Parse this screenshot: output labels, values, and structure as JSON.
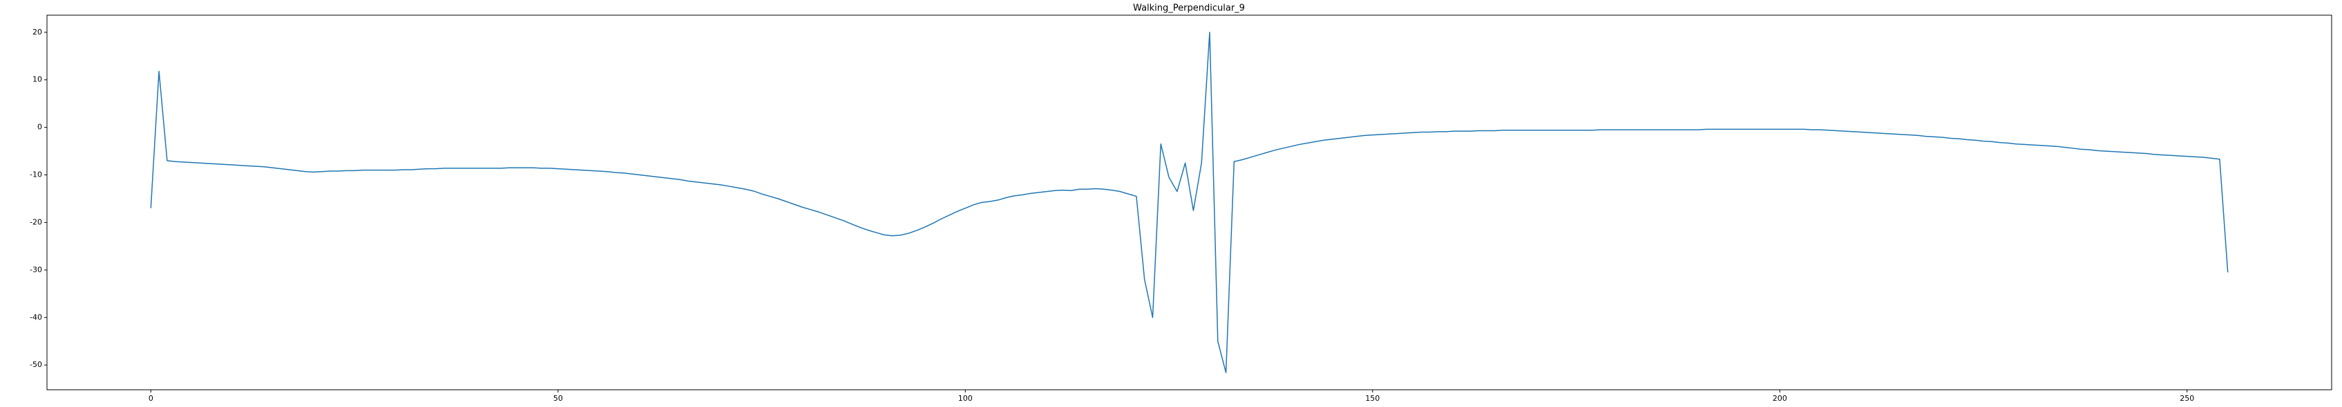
{
  "chart_data": {
    "type": "line",
    "title": "Walking_Perpendicular_9",
    "color": "#1f77b4",
    "x": [
      0,
      1,
      2,
      3,
      4,
      5,
      6,
      7,
      8,
      9,
      10,
      11,
      12,
      13,
      14,
      15,
      16,
      17,
      18,
      19,
      20,
      21,
      22,
      23,
      24,
      25,
      26,
      27,
      28,
      29,
      30,
      31,
      32,
      33,
      34,
      35,
      36,
      37,
      38,
      39,
      40,
      41,
      42,
      43,
      44,
      45,
      46,
      47,
      48,
      49,
      50,
      51,
      52,
      53,
      54,
      55,
      56,
      57,
      58,
      59,
      60,
      61,
      62,
      63,
      64,
      65,
      66,
      67,
      68,
      69,
      70,
      71,
      72,
      73,
      74,
      75,
      76,
      77,
      78,
      79,
      80,
      81,
      82,
      83,
      84,
      85,
      86,
      87,
      88,
      89,
      90,
      91,
      92,
      93,
      94,
      95,
      96,
      97,
      98,
      99,
      100,
      101,
      102,
      103,
      104,
      105,
      106,
      107,
      108,
      109,
      110,
      111,
      112,
      113,
      114,
      115,
      116,
      117,
      118,
      119,
      120,
      121,
      122,
      123,
      124,
      125,
      126,
      127,
      128,
      129,
      130,
      131,
      132,
      133,
      134,
      135,
      136,
      137,
      138,
      139,
      140,
      141,
      142,
      143,
      144,
      145,
      146,
      147,
      148,
      149,
      150,
      151,
      152,
      153,
      154,
      155,
      156,
      157,
      158,
      159,
      160,
      161,
      162,
      163,
      164,
      165,
      166,
      167,
      168,
      169,
      170,
      171,
      172,
      173,
      174,
      175,
      176,
      177,
      178,
      179,
      180,
      181,
      182,
      183,
      184,
      185,
      186,
      187,
      188,
      189,
      190,
      191,
      192,
      193,
      194,
      195,
      196,
      197,
      198,
      199,
      200,
      201,
      202,
      203,
      204,
      205,
      206,
      207,
      208,
      209,
      210,
      211,
      212,
      213,
      214,
      215,
      216,
      217,
      218,
      219,
      220,
      221,
      222,
      223,
      224,
      225,
      226,
      227,
      228,
      229,
      230,
      231,
      232,
      233,
      234,
      235,
      236,
      237,
      238,
      239,
      240,
      241,
      242,
      243,
      244,
      245,
      246,
      247,
      248,
      249,
      250,
      251,
      252,
      253,
      254,
      255
    ],
    "values": [
      -17,
      11.8,
      -7,
      -7.2,
      -7.3,
      -7.4,
      -7.5,
      -7.6,
      -7.7,
      -7.8,
      -7.9,
      -8.0,
      -8.1,
      -8.2,
      -8.3,
      -8.5,
      -8.7,
      -8.9,
      -9.1,
      -9.3,
      -9.4,
      -9.3,
      -9.2,
      -9.2,
      -9.1,
      -9.1,
      -9.0,
      -9.0,
      -9.0,
      -9.0,
      -9.0,
      -8.9,
      -8.9,
      -8.8,
      -8.7,
      -8.7,
      -8.6,
      -8.6,
      -8.6,
      -8.6,
      -8.6,
      -8.6,
      -8.6,
      -8.6,
      -8.5,
      -8.5,
      -8.5,
      -8.5,
      -8.6,
      -8.6,
      -8.7,
      -8.8,
      -8.9,
      -9.0,
      -9.1,
      -9.2,
      -9.3,
      -9.5,
      -9.6,
      -9.8,
      -10.0,
      -10.2,
      -10.4,
      -10.6,
      -10.8,
      -11.0,
      -11.3,
      -11.5,
      -11.7,
      -11.9,
      -12.1,
      -12.4,
      -12.7,
      -13.0,
      -13.4,
      -14.0,
      -14.5,
      -15.0,
      -15.6,
      -16.2,
      -16.8,
      -17.3,
      -17.8,
      -18.4,
      -19.0,
      -19.6,
      -20.3,
      -21.0,
      -21.6,
      -22.1,
      -22.6,
      -22.8,
      -22.7,
      -22.3,
      -21.7,
      -21.0,
      -20.2,
      -19.3,
      -18.5,
      -17.7,
      -17.0,
      -16.3,
      -15.8,
      -15.6,
      -15.3,
      -14.8,
      -14.4,
      -14.2,
      -13.9,
      -13.7,
      -13.5,
      -13.3,
      -13.2,
      -13.3,
      -13.0,
      -13.0,
      -12.9,
      -13.0,
      -13.2,
      -13.5,
      -14.0,
      -14.5,
      -32,
      -40,
      -3.5,
      -10.5,
      -13.5,
      -7.5,
      -17.5,
      -7.5,
      20,
      -45,
      -51.6,
      -7.2,
      -6.8,
      -6.3,
      -5.8,
      -5.3,
      -4.8,
      -4.4,
      -4.0,
      -3.6,
      -3.3,
      -3.0,
      -2.7,
      -2.5,
      -2.3,
      -2.1,
      -1.9,
      -1.7,
      -1.6,
      -1.5,
      -1.4,
      -1.3,
      -1.2,
      -1.1,
      -1.0,
      -1.0,
      -0.9,
      -0.9,
      -0.8,
      -0.8,
      -0.8,
      -0.7,
      -0.7,
      -0.7,
      -0.6,
      -0.6,
      -0.6,
      -0.6,
      -0.6,
      -0.6,
      -0.6,
      -0.6,
      -0.6,
      -0.6,
      -0.6,
      -0.6,
      -0.5,
      -0.5,
      -0.5,
      -0.5,
      -0.5,
      -0.5,
      -0.5,
      -0.5,
      -0.5,
      -0.5,
      -0.5,
      -0.5,
      -0.5,
      -0.4,
      -0.4,
      -0.4,
      -0.4,
      -0.4,
      -0.4,
      -0.4,
      -0.4,
      -0.4,
      -0.4,
      -0.4,
      -0.4,
      -0.4,
      -0.5,
      -0.5,
      -0.6,
      -0.7,
      -0.8,
      -0.9,
      -1.0,
      -1.1,
      -1.2,
      -1.3,
      -1.4,
      -1.5,
      -1.6,
      -1.7,
      -1.9,
      -2.0,
      -2.1,
      -2.3,
      -2.4,
      -2.6,
      -2.7,
      -2.9,
      -3.0,
      -3.2,
      -3.3,
      -3.5,
      -3.6,
      -3.7,
      -3.8,
      -3.9,
      -4.0,
      -4.2,
      -4.4,
      -4.6,
      -4.7,
      -4.9,
      -5.0,
      -5.1,
      -5.2,
      -5.3,
      -5.4,
      -5.5,
      -5.7,
      -5.8,
      -5.9,
      -6.0,
      -6.1,
      -6.2,
      -6.3,
      -6.5,
      -6.7,
      -30.5
    ],
    "xlim": [
      -12.75,
      267.75
    ],
    "xticks": [
      0,
      50,
      100,
      150,
      200,
      250
    ],
    "ylim": [
      -55.2,
      23.6
    ],
    "yticks": [
      -50,
      -40,
      -30,
      -20,
      -10,
      0,
      10,
      20
    ]
  }
}
